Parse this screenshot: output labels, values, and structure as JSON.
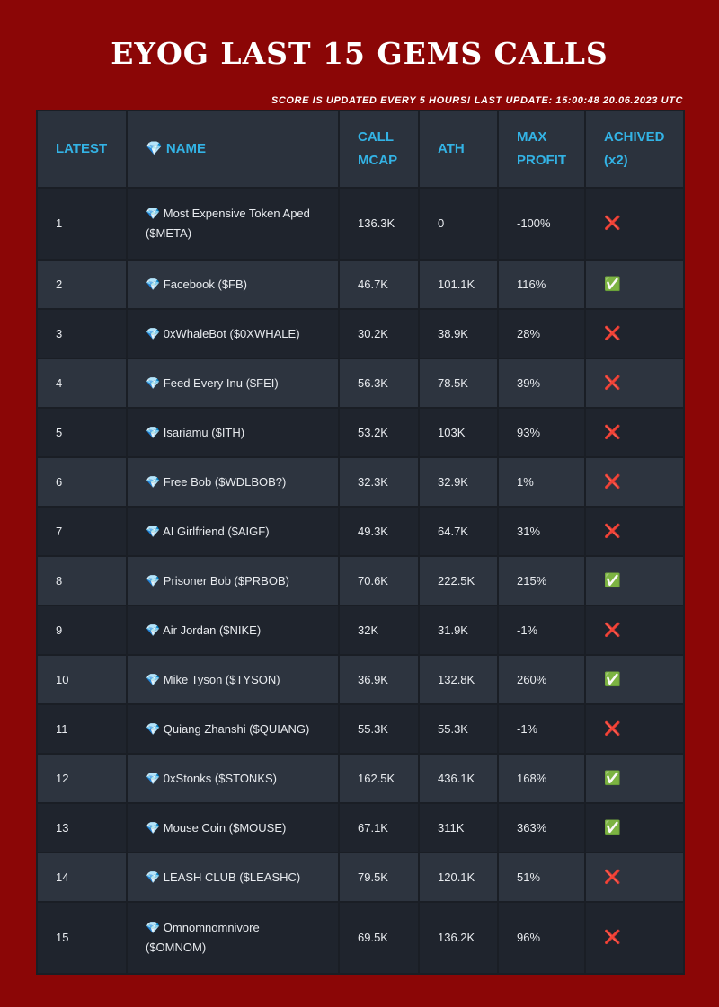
{
  "header": {
    "title": "EYOG LAST 15 GEMS CALLS",
    "subtitle": "SCORE IS UPDATED EVERY 5 HOURS! LAST UPDATE: 15:00:48 20.06.2023 UTC"
  },
  "table": {
    "columns": [
      "LATEST",
      "💎 NAME",
      "CALL MCAP",
      "ATH",
      "MAX PROFIT",
      "ACHIVED (x2)"
    ],
    "rows": [
      {
        "latest": "1",
        "name": "💎 Most Expensive Token Aped ($META)",
        "call_mcap": "136.3K",
        "ath": "0",
        "max_profit": "-100%",
        "achieved": "❌"
      },
      {
        "latest": "2",
        "name": "💎 Facebook ($FB)",
        "call_mcap": "46.7K",
        "ath": "101.1K",
        "max_profit": "116%",
        "achieved": "✅"
      },
      {
        "latest": "3",
        "name": "💎 0xWhaleBot ($0XWHALE)",
        "call_mcap": "30.2K",
        "ath": "38.9K",
        "max_profit": "28%",
        "achieved": "❌"
      },
      {
        "latest": "4",
        "name": "💎 Feed Every Inu ($FEI)",
        "call_mcap": "56.3K",
        "ath": "78.5K",
        "max_profit": "39%",
        "achieved": "❌"
      },
      {
        "latest": "5",
        "name": "💎 Isariamu ($ITH)",
        "call_mcap": "53.2K",
        "ath": "103K",
        "max_profit": "93%",
        "achieved": "❌"
      },
      {
        "latest": "6",
        "name": "💎 Free Bob ($WDLBOB?)",
        "call_mcap": "32.3K",
        "ath": "32.9K",
        "max_profit": "1%",
        "achieved": "❌"
      },
      {
        "latest": "7",
        "name": "💎 AI Girlfriend ($AIGF)",
        "call_mcap": "49.3K",
        "ath": "64.7K",
        "max_profit": "31%",
        "achieved": "❌"
      },
      {
        "latest": "8",
        "name": "💎 Prisoner Bob ($PRBOB)",
        "call_mcap": "70.6K",
        "ath": "222.5K",
        "max_profit": "215%",
        "achieved": "✅"
      },
      {
        "latest": "9",
        "name": "💎 Air Jordan ($NIKE)",
        "call_mcap": "32K",
        "ath": "31.9K",
        "max_profit": "-1%",
        "achieved": "❌"
      },
      {
        "latest": "10",
        "name": "💎 Mike Tyson ($TYSON)",
        "call_mcap": "36.9K",
        "ath": "132.8K",
        "max_profit": "260%",
        "achieved": "✅"
      },
      {
        "latest": "11",
        "name": "💎 Quiang Zhanshi ($QUIANG)",
        "call_mcap": "55.3K",
        "ath": "55.3K",
        "max_profit": "-1%",
        "achieved": "❌"
      },
      {
        "latest": "12",
        "name": "💎 0xStonks ($STONKS)",
        "call_mcap": "162.5K",
        "ath": "436.1K",
        "max_profit": "168%",
        "achieved": "✅"
      },
      {
        "latest": "13",
        "name": "💎 Mouse Coin ($MOUSE)",
        "call_mcap": "67.1K",
        "ath": "311K",
        "max_profit": "363%",
        "achieved": "✅"
      },
      {
        "latest": "14",
        "name": "💎 LEASH CLUB ($LEASHC)",
        "call_mcap": "79.5K",
        "ath": "120.1K",
        "max_profit": "51%",
        "achieved": "❌"
      },
      {
        "latest": "15",
        "name": "💎 Omnomnomnivore ($OMNOM)",
        "call_mcap": "69.5K",
        "ath": "136.2K",
        "max_profit": "96%",
        "achieved": "❌"
      }
    ]
  },
  "colors": {
    "background": "#8b0606",
    "table_dark": "#1f242d",
    "table_light": "#2d343f",
    "header_text": "#33b3e5",
    "cross": "#e5313a",
    "check": "#6cc04a"
  }
}
